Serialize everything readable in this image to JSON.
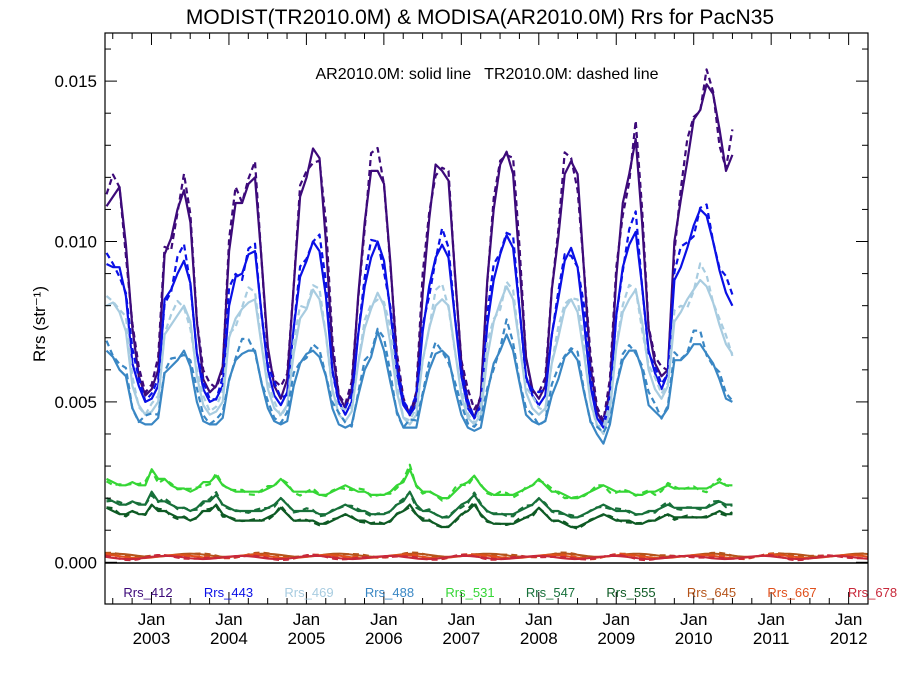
{
  "chart_data": {
    "type": "line",
    "title": "MODIST(TR2010.0M) & MODISA(AR2010.0M)  Rrs for PacN35",
    "annotation": "AR2010.0M: solid line   TR2010.0M: dashed line",
    "ylabel": "Rrs (str⁻¹)",
    "xlim": [
      2002.4,
      2012.25
    ],
    "ylim": [
      -0.0013,
      0.0165
    ],
    "yticks": [
      0.0,
      0.005,
      0.01,
      0.015
    ],
    "ytick_labels": [
      "0.000",
      "0.005",
      "0.010",
      "0.015"
    ],
    "xtick_month": "Jan",
    "xtick_years": [
      "2003",
      "2004",
      "2005",
      "2006",
      "2007",
      "2008",
      "2009",
      "2010",
      "2011",
      "2012"
    ],
    "grid": false,
    "legend_placement": "bottom inside, horizontal",
    "series_style": {
      "solid": "AR2010.0M",
      "dashed": "TR2010.0M"
    },
    "series": [
      {
        "name": "Rrs_412",
        "color": "#3d0a7a",
        "start": 2002.42,
        "step": 0.0833,
        "solid": [
          0.0111,
          0.0114,
          0.0117,
          0.0099,
          0.0073,
          0.0058,
          0.0052,
          0.0054,
          0.006,
          0.0096,
          0.0101,
          0.011,
          0.0116,
          0.0106,
          0.0075,
          0.0057,
          0.0053,
          0.0055,
          0.0061,
          0.0097,
          0.0112,
          0.0112,
          0.0118,
          0.012,
          0.0095,
          0.0067,
          0.0055,
          0.0051,
          0.0057,
          0.0086,
          0.0114,
          0.012,
          0.0129,
          0.0126,
          0.01,
          0.0066,
          0.0052,
          0.0048,
          0.0054,
          0.0083,
          0.0106,
          0.0122,
          0.0122,
          0.0118,
          0.0093,
          0.0063,
          0.005,
          0.0046,
          0.0051,
          0.0084,
          0.0107,
          0.0124,
          0.0122,
          0.0119,
          0.009,
          0.0062,
          0.005,
          0.0045,
          0.0052,
          0.0088,
          0.011,
          0.0124,
          0.0128,
          0.0121,
          0.0093,
          0.0064,
          0.0054,
          0.0051,
          0.0055,
          0.0085,
          0.0101,
          0.0121,
          0.0125,
          0.0121,
          0.0091,
          0.0061,
          0.0047,
          0.0043,
          0.0054,
          0.0089,
          0.0112,
          0.0121,
          0.0132,
          0.0106,
          0.0073,
          0.0062,
          0.0058,
          0.006,
          0.01,
          0.0113,
          0.0125,
          0.0138,
          0.0141,
          0.0149,
          0.0146,
          0.0135,
          0.0122,
          0.0127
        ]
      },
      {
        "name": "Rrs_443",
        "color": "#0a10e6",
        "start": 2002.42,
        "step": 0.0833,
        "solid": [
          0.0093,
          0.0092,
          0.0092,
          0.0083,
          0.0062,
          0.0055,
          0.005,
          0.0051,
          0.0055,
          0.0082,
          0.0085,
          0.009,
          0.0094,
          0.0087,
          0.0065,
          0.0054,
          0.005,
          0.0051,
          0.0055,
          0.008,
          0.0089,
          0.009,
          0.0096,
          0.0097,
          0.0078,
          0.006,
          0.0052,
          0.0049,
          0.0053,
          0.0073,
          0.0089,
          0.0094,
          0.01,
          0.0097,
          0.0083,
          0.006,
          0.005,
          0.0046,
          0.005,
          0.0071,
          0.0086,
          0.0095,
          0.01,
          0.0094,
          0.0078,
          0.0059,
          0.0049,
          0.0046,
          0.0049,
          0.0072,
          0.0086,
          0.0095,
          0.0099,
          0.0095,
          0.0076,
          0.0058,
          0.0048,
          0.0045,
          0.0049,
          0.0074,
          0.0088,
          0.0096,
          0.0102,
          0.0098,
          0.0079,
          0.0058,
          0.0052,
          0.0049,
          0.0052,
          0.0071,
          0.0082,
          0.0094,
          0.0098,
          0.0092,
          0.0075,
          0.0055,
          0.0045,
          0.0042,
          0.005,
          0.0077,
          0.0092,
          0.0099,
          0.0103,
          0.0086,
          0.0066,
          0.0059,
          0.0054,
          0.0059,
          0.0088,
          0.0092,
          0.0098,
          0.0105,
          0.011,
          0.0108,
          0.01,
          0.0091,
          0.0084,
          0.008
        ]
      },
      {
        "name": "Rrs_469",
        "color": "#a8cce0",
        "start": 2002.42,
        "step": 0.0833,
        "solid": [
          0.008,
          0.0081,
          0.0078,
          0.0072,
          0.0055,
          0.0049,
          0.0046,
          0.0047,
          0.005,
          0.0071,
          0.0074,
          0.0077,
          0.008,
          0.0075,
          0.0058,
          0.0049,
          0.0046,
          0.0047,
          0.005,
          0.007,
          0.0076,
          0.0079,
          0.0081,
          0.0082,
          0.0068,
          0.0054,
          0.0048,
          0.0046,
          0.0049,
          0.0065,
          0.0076,
          0.0079,
          0.0085,
          0.0082,
          0.0071,
          0.0054,
          0.0046,
          0.0044,
          0.0047,
          0.0062,
          0.0073,
          0.0079,
          0.0084,
          0.008,
          0.0068,
          0.0053,
          0.0045,
          0.0043,
          0.0046,
          0.0063,
          0.0073,
          0.008,
          0.0082,
          0.008,
          0.0066,
          0.0052,
          0.0045,
          0.0043,
          0.0046,
          0.0064,
          0.0075,
          0.0081,
          0.0086,
          0.0082,
          0.0068,
          0.0053,
          0.0048,
          0.0046,
          0.0048,
          0.0062,
          0.007,
          0.0079,
          0.0082,
          0.0078,
          0.0065,
          0.005,
          0.0043,
          0.004,
          0.0047,
          0.0067,
          0.0078,
          0.0082,
          0.0085,
          0.0075,
          0.006,
          0.0054,
          0.0051,
          0.0055,
          0.0075,
          0.0078,
          0.0082,
          0.0085,
          0.0088,
          0.0086,
          0.0081,
          0.0074,
          0.0068,
          0.0065
        ]
      },
      {
        "name": "Rrs_488",
        "color": "#3a87c4",
        "start": 2002.42,
        "step": 0.0833,
        "solid": [
          0.0066,
          0.0064,
          0.006,
          0.0058,
          0.0048,
          0.0044,
          0.0043,
          0.0043,
          0.0045,
          0.0059,
          0.0061,
          0.0063,
          0.0066,
          0.0061,
          0.005,
          0.0044,
          0.0043,
          0.0043,
          0.0045,
          0.0057,
          0.0063,
          0.0065,
          0.0066,
          0.0066,
          0.0056,
          0.0048,
          0.0044,
          0.0043,
          0.0044,
          0.0055,
          0.0062,
          0.0065,
          0.0066,
          0.0064,
          0.0058,
          0.0048,
          0.0043,
          0.0042,
          0.0043,
          0.0052,
          0.006,
          0.0064,
          0.0072,
          0.0066,
          0.0056,
          0.0047,
          0.0042,
          0.0042,
          0.0042,
          0.0052,
          0.006,
          0.0065,
          0.0066,
          0.0064,
          0.0054,
          0.0046,
          0.0042,
          0.0041,
          0.0042,
          0.0053,
          0.0062,
          0.0066,
          0.0071,
          0.0066,
          0.0056,
          0.0046,
          0.0044,
          0.0043,
          0.0044,
          0.0052,
          0.0057,
          0.0064,
          0.0066,
          0.0063,
          0.0053,
          0.0044,
          0.004,
          0.0037,
          0.0043,
          0.0055,
          0.0063,
          0.0066,
          0.0066,
          0.006,
          0.0049,
          0.0047,
          0.0045,
          0.0048,
          0.0063,
          0.0063,
          0.0065,
          0.0068,
          0.0068,
          0.0065,
          0.0062,
          0.0057,
          0.0051,
          0.005
        ]
      },
      {
        "name": "Rrs_531",
        "color": "#35d635",
        "start": 2002.42,
        "step": 0.0833,
        "solid": [
          0.0026,
          0.0025,
          0.0024,
          0.0024,
          0.0025,
          0.0024,
          0.0024,
          0.0029,
          0.0026,
          0.0026,
          0.0024,
          0.0023,
          0.0023,
          0.0022,
          0.0023,
          0.0025,
          0.0025,
          0.0027,
          0.0024,
          0.0023,
          0.0022,
          0.0022,
          0.0022,
          0.0022,
          0.0022,
          0.0023,
          0.0024,
          0.0026,
          0.0024,
          0.0022,
          0.0022,
          0.0022,
          0.0022,
          0.0021,
          0.0021,
          0.0022,
          0.0023,
          0.0024,
          0.0023,
          0.0022,
          0.0022,
          0.0021,
          0.0021,
          0.0021,
          0.0022,
          0.0024,
          0.0025,
          0.0029,
          0.0024,
          0.0022,
          0.0022,
          0.0021,
          0.002,
          0.002,
          0.0022,
          0.0024,
          0.0025,
          0.0027,
          0.0024,
          0.0022,
          0.0021,
          0.0021,
          0.0021,
          0.0021,
          0.0022,
          0.0023,
          0.0024,
          0.0026,
          0.0024,
          0.0022,
          0.0022,
          0.0021,
          0.002,
          0.002,
          0.0021,
          0.0022,
          0.0023,
          0.0024,
          0.0023,
          0.0022,
          0.0022,
          0.0022,
          0.0021,
          0.0021,
          0.0022,
          0.0022,
          0.0023,
          0.0024,
          0.0023,
          0.0023,
          0.0023,
          0.0023,
          0.0023,
          0.0023,
          0.0024,
          0.0025,
          0.0024,
          0.0024
        ]
      },
      {
        "name": "Rrs_547",
        "color": "#17703a",
        "start": 2002.42,
        "step": 0.0833,
        "solid": [
          0.002,
          0.0019,
          0.0018,
          0.0018,
          0.0019,
          0.0018,
          0.0018,
          0.0022,
          0.0019,
          0.0019,
          0.0018,
          0.0017,
          0.0017,
          0.0016,
          0.0017,
          0.0019,
          0.0019,
          0.0021,
          0.0018,
          0.0017,
          0.0016,
          0.0016,
          0.0016,
          0.0016,
          0.0016,
          0.0017,
          0.0018,
          0.002,
          0.0018,
          0.0016,
          0.0016,
          0.0016,
          0.0016,
          0.0015,
          0.0015,
          0.0016,
          0.0017,
          0.0018,
          0.0017,
          0.0016,
          0.0016,
          0.0015,
          0.0015,
          0.0015,
          0.0016,
          0.0018,
          0.0019,
          0.0022,
          0.0018,
          0.0016,
          0.0016,
          0.0015,
          0.0014,
          0.0014,
          0.0016,
          0.0018,
          0.0019,
          0.0021,
          0.0018,
          0.0016,
          0.0015,
          0.0015,
          0.0015,
          0.0015,
          0.0016,
          0.0017,
          0.0018,
          0.002,
          0.0018,
          0.0016,
          0.0016,
          0.0015,
          0.0014,
          0.0014,
          0.0015,
          0.0016,
          0.0017,
          0.0018,
          0.0017,
          0.0016,
          0.0016,
          0.0016,
          0.0015,
          0.0015,
          0.0016,
          0.0016,
          0.0017,
          0.0018,
          0.0017,
          0.0017,
          0.0017,
          0.0017,
          0.0017,
          0.0017,
          0.0018,
          0.0019,
          0.0018,
          0.0018
        ]
      },
      {
        "name": "Rrs_555",
        "color": "#0e5a24",
        "start": 2002.42,
        "step": 0.0833,
        "solid": [
          0.0017,
          0.0016,
          0.0015,
          0.0015,
          0.0016,
          0.0015,
          0.0015,
          0.0018,
          0.0016,
          0.0016,
          0.0015,
          0.0014,
          0.0014,
          0.0013,
          0.0014,
          0.0016,
          0.0016,
          0.0018,
          0.0015,
          0.0014,
          0.0013,
          0.0013,
          0.0013,
          0.0013,
          0.0013,
          0.0014,
          0.0015,
          0.0017,
          0.0015,
          0.0013,
          0.0013,
          0.0013,
          0.0013,
          0.0012,
          0.0012,
          0.0013,
          0.0014,
          0.0015,
          0.0014,
          0.0013,
          0.0013,
          0.0012,
          0.0012,
          0.0012,
          0.0013,
          0.0015,
          0.0016,
          0.0018,
          0.0015,
          0.0013,
          0.0013,
          0.0012,
          0.0011,
          0.0011,
          0.0013,
          0.0015,
          0.0016,
          0.0018,
          0.0015,
          0.0013,
          0.0012,
          0.0012,
          0.0012,
          0.0012,
          0.0013,
          0.0014,
          0.0015,
          0.0017,
          0.0015,
          0.0013,
          0.0013,
          0.0012,
          0.0011,
          0.0011,
          0.0012,
          0.0013,
          0.0014,
          0.0015,
          0.0014,
          0.0013,
          0.0013,
          0.0013,
          0.0012,
          0.0012,
          0.0013,
          0.0013,
          0.0014,
          0.0015,
          0.0014,
          0.0014,
          0.0014,
          0.0014,
          0.0014,
          0.0014,
          0.0015,
          0.0016,
          0.0015,
          0.0015
        ]
      },
      {
        "name": "Rrs_645",
        "color": "#b5541a",
        "level": 0.00022
      },
      {
        "name": "Rrs_667",
        "color": "#e0501c",
        "level": 0.00018
      },
      {
        "name": "Rrs_678",
        "color": "#c8283a",
        "level": 0.00015
      }
    ]
  }
}
